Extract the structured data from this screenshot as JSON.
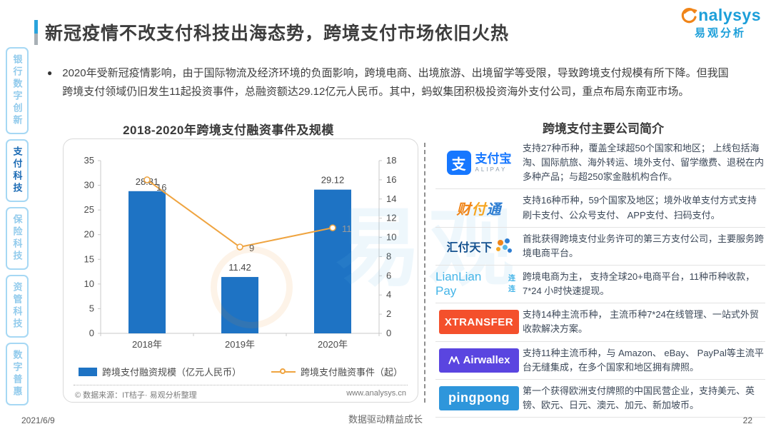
{
  "header": {
    "title": "新冠疫情不改支付科技出海态势，跨境支付市场依旧火热"
  },
  "brand": {
    "logo_main": "nalysys",
    "logo_sub": "易观分析"
  },
  "sidebar": {
    "items": [
      {
        "id": "bank-digital-innovation",
        "label": "银行数字创新",
        "active": false
      },
      {
        "id": "payment-tech",
        "label": "支付科技",
        "active": true
      },
      {
        "id": "insurance-tech",
        "label": "保险科技",
        "active": false
      },
      {
        "id": "asset-mgmt-tech",
        "label": "资管科技",
        "active": false
      },
      {
        "id": "digital-inclusion",
        "label": "数字普惠",
        "active": false
      }
    ]
  },
  "intro": {
    "bullet_text": "2020年受新冠疫情影响，由于国际物流及经济环境的负面影响，跨境电商、出境旅游、出境留学等受限，导致跨境支付规模有所下降。但我国跨境支付领域仍旧发生11起投资事件，总融资额达29.12亿元人民币。其中，蚂蚁集团积极投资海外支付公司，重点布局东南亚市场。"
  },
  "chart_section": {
    "title": "2018-2020年跨境支付融资事件及规模",
    "source": "© 数据来源：IT桔子· 易观分析整理",
    "website": "www.analysys.cn"
  },
  "chart_data": {
    "type": "bar",
    "title": "2018-2020年跨境支付融资事件及规模",
    "categories": [
      "2018年",
      "2019年",
      "2020年"
    ],
    "series": [
      {
        "name": "跨境支付融资规模（亿元人民币）",
        "type": "bar",
        "axis": "left",
        "values": [
          28.81,
          11.42,
          29.12
        ],
        "color": "#1e73c4"
      },
      {
        "name": "跨境支付融资事件（起）",
        "type": "line",
        "axis": "right",
        "values": [
          16,
          9,
          11
        ],
        "color": "#efa440"
      }
    ],
    "left_axis": {
      "min": 0,
      "max": 35,
      "step": 5
    },
    "right_axis": {
      "min": 0,
      "max": 18,
      "step": 2
    },
    "grid": false,
    "legend_position": "bottom"
  },
  "companies": {
    "title": "跨境支付主要公司简介",
    "rows": [
      {
        "name": "支付宝",
        "logo": "alipay",
        "logo_icon_char": "支",
        "logo_cn": "支付宝",
        "logo_en": "ALIPAY",
        "desc": "支持27种币种，覆盖全球超50个国家和地区； 上线包括海淘、国际航旅、海外转运、境外支付、留学缴费、退税在内多种产品；与超250家金融机构合作。"
      },
      {
        "name": "财付通",
        "logo": "tenpay",
        "logo_text": "财付通",
        "desc": "支持16种币种，59个国家及地区；境外收单支付方式支持刷卡支付、公众号支付、 APP支付、扫码支付。"
      },
      {
        "name": "汇付天下",
        "logo": "huifu",
        "logo_text": "汇付天下",
        "desc": "首批获得跨境支付业务许可的第三方支付公司，主要服务跨境电商平台。"
      },
      {
        "name": "LianLian Pay",
        "logo": "lianlian",
        "logo_en": "LianLian Pay",
        "logo_cn": "连连",
        "desc": "跨境电商为主， 支持全球20+电商平台，11种币种收款，7*24 小时快速提现。"
      },
      {
        "name": "XTRANSFER",
        "logo": "xtransfer",
        "logo_text": "XTRANSFER",
        "desc": "支持14种主流币种， 主流币种7*24在线管理、一站式外贸收款解决方案。"
      },
      {
        "name": "Airwallex",
        "logo": "airwallex",
        "logo_text": "Airwallex",
        "desc": "支持11种主流币种，与 Amazon、 eBay、 PayPal等主流平台无缝集成，在多个国家和地区拥有牌照。"
      },
      {
        "name": "pingpong",
        "logo": "pingpong",
        "logo_text": "pingpong",
        "desc": "第一个获得欧洲支付牌照的中国民营企业，支持美元、英镑、欧元、日元、澳元、加元、新加坡币。"
      }
    ]
  },
  "watermark": {
    "text": "易观"
  },
  "footer": {
    "date": "2021/6/9",
    "center": "数据驱动精益成长",
    "page_number": "22"
  }
}
